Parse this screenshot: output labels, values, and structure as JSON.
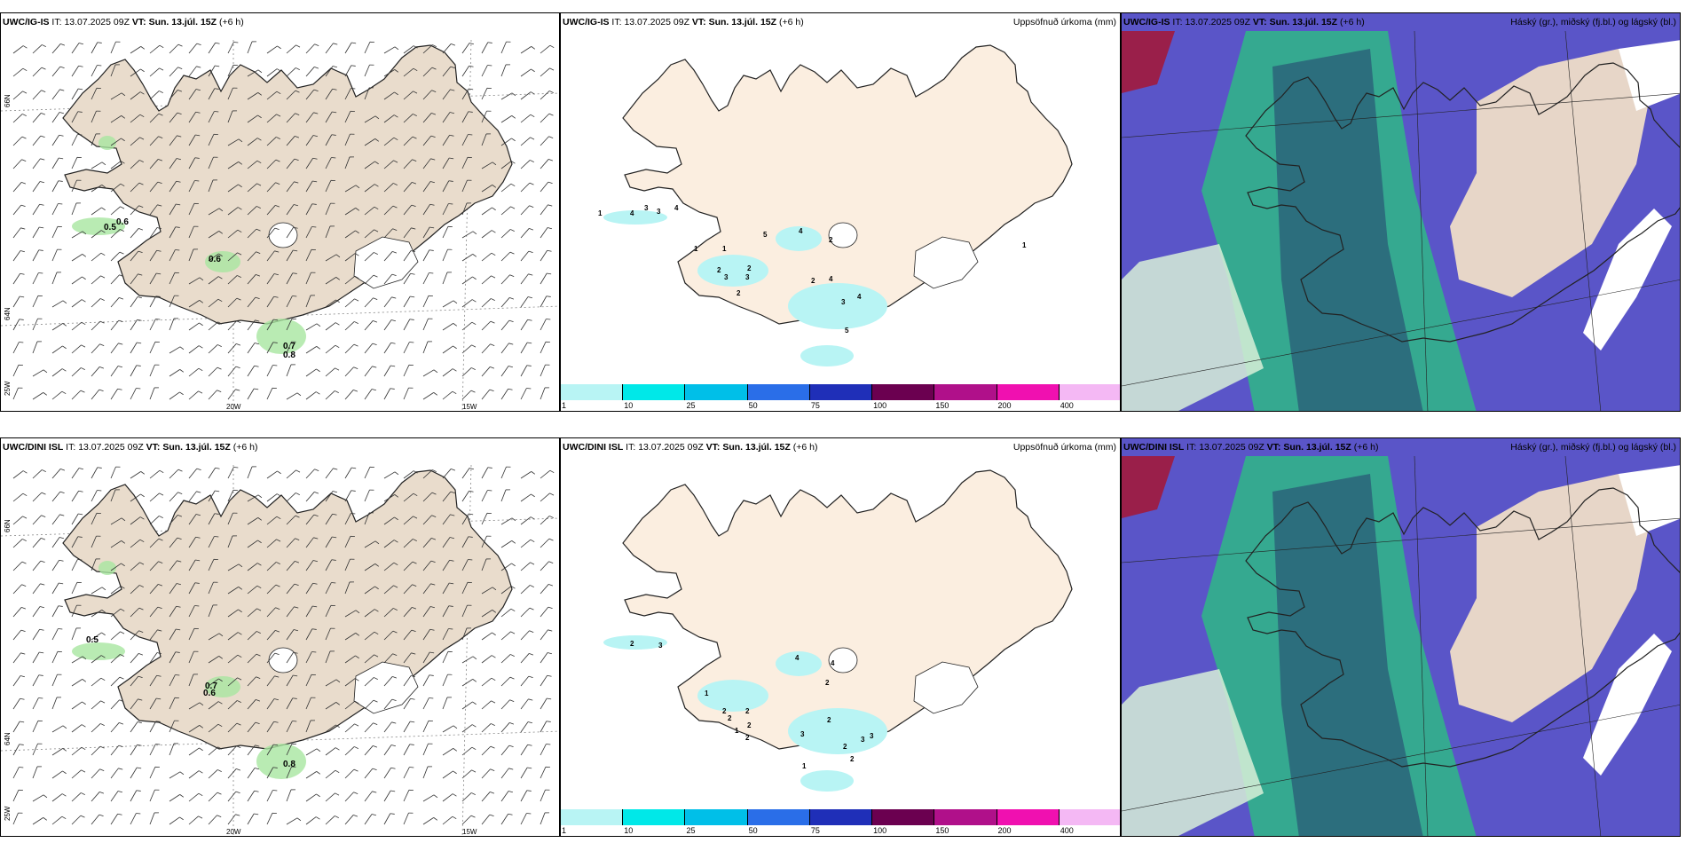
{
  "panels": {
    "top_wind": {
      "model": "UWC/IG-IS",
      "it": "13.07.2025 09Z",
      "vt": "Sun. 13.júl. 15Z",
      "lead": "(+6 h)"
    },
    "top_precip": {
      "model": "UWC/IG-IS",
      "it": "13.07.2025 09Z",
      "vt": "Sun. 13.júl. 15Z",
      "lead": "(+6 h)",
      "right": "Uppsöfnuð úrkoma (mm)"
    },
    "top_cloud": {
      "model": "UWC/IG-IS",
      "it": "13.07.2025 09Z",
      "vt": "Sun. 13.júl. 15Z",
      "lead": "(+6 h)",
      "right": "Háský (gr.), miðský (fj.bl.) og lágský (bl.)"
    },
    "bot_wind": {
      "model": "UWC/DINI ISL",
      "it": "13.07.2025 09Z",
      "vt": "Sun. 13.júl. 15Z",
      "lead": "(+6 h)"
    },
    "bot_precip": {
      "model": "UWC/DINI ISL",
      "it": "13.07.2025 09Z",
      "vt": "Sun. 13.júl. 15Z",
      "lead": "(+6 h)",
      "right": "Uppsöfnuð úrkoma (mm)"
    },
    "bot_cloud": {
      "model": "UWC/DINI ISL",
      "it": "13.07.2025 09Z",
      "vt": "Sun. 13.júl. 15Z",
      "lead": "(+6 h)",
      "right": "Háský (gr.), miðský (fj.bl.) og lágský (bl.)"
    }
  },
  "labels": {
    "it": "IT:",
    "vt": "VT:"
  },
  "axes": {
    "lat66": "66N",
    "lat64": "64N",
    "lon20": "20W",
    "lon15": "15W",
    "lon25": "25W"
  },
  "wind_values": {
    "top": [
      "0.5",
      "0.6",
      "0.6",
      "0.7",
      "0.8"
    ],
    "bottom": [
      "0.5",
      "0.6",
      "0.7",
      "0.8"
    ]
  },
  "precip_values": {
    "top": [
      "4",
      "3",
      "3",
      "4",
      "1",
      "5",
      "4",
      "2",
      "1",
      "2",
      "3",
      "2",
      "3",
      "2",
      "4",
      "3",
      "4",
      "2",
      "5",
      "1",
      "1"
    ],
    "bottom": [
      "3",
      "2",
      "4",
      "4",
      "2",
      "1",
      "2",
      "2",
      "1",
      "2",
      "2",
      "2",
      "2",
      "2",
      "3",
      "3",
      "2",
      "1",
      "3"
    ]
  },
  "colorbar": {
    "ticks": [
      "1",
      "10",
      "25",
      "50",
      "75",
      "100",
      "150",
      "200",
      "400"
    ],
    "colors": [
      "#b8f4f4",
      "#00e8e8",
      "#00bfe8",
      "#2a6ee8",
      "#1f2fb8",
      "#6b0050",
      "#b0108a",
      "#f010b0",
      "#f4b8f4"
    ]
  },
  "colors": {
    "land": "#fbeee0",
    "landWind": "#e9dccc",
    "cloudBlue": "#5a55c8",
    "cloudGreen": "#2fb886",
    "cloudDark": "#2a5f78",
    "cloudMaroon": "#9a1f4a"
  }
}
